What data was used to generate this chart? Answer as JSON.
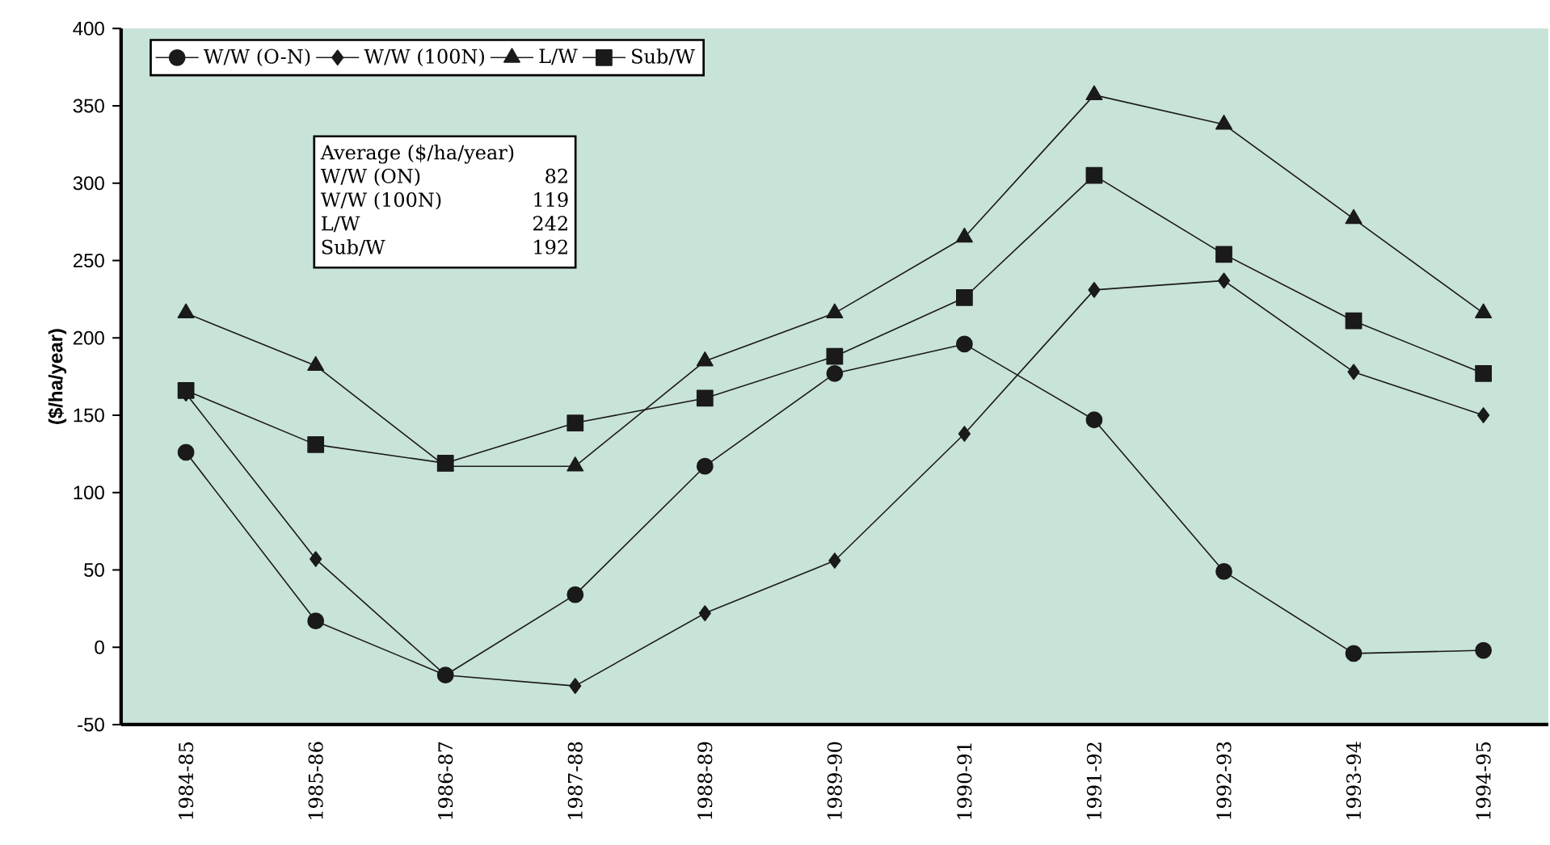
{
  "chart_data": {
    "type": "line",
    "ylabel": "($/ha/year)",
    "categories": [
      "1984-85",
      "1985-86",
      "1986-87",
      "1987-88",
      "1988-89",
      "1989-90",
      "1990-91",
      "1991-92",
      "1992-93",
      "1993-94",
      "1994-95"
    ],
    "series": [
      {
        "name": "W/W (O-N)",
        "color": "#1a1a1a",
        "marker": "circle",
        "values": [
          126,
          17,
          -18,
          34,
          117,
          177,
          196,
          147,
          49,
          -4,
          -2
        ]
      },
      {
        "name": "W/W (100N)",
        "color": "#1a1a1a",
        "marker": "diamond",
        "values": [
          164,
          57,
          -18,
          -25,
          22,
          56,
          138,
          231,
          237,
          178,
          150
        ]
      },
      {
        "name": "L/W",
        "color": "#1a1a1a",
        "marker": "triangle",
        "values": [
          216,
          182,
          117,
          117,
          185,
          216,
          265,
          357,
          338,
          277,
          216
        ]
      },
      {
        "name": "Sub/W",
        "color": "#1a1a1a",
        "marker": "square",
        "values": [
          166,
          131,
          119,
          145,
          161,
          188,
          226,
          305,
          254,
          211,
          177
        ]
      }
    ],
    "ylim": [
      -50,
      400
    ],
    "yticks": [
      -50,
      0,
      50,
      100,
      150,
      200,
      250,
      300,
      350,
      400
    ],
    "grid": false,
    "legend": "top left",
    "line_style": "solid",
    "annotations": [
      "Average ($/ha/year)",
      "W/W (ON)",
      "82",
      "W/W (100N)",
      "119",
      "L/W",
      "242",
      "Sub/W",
      "192"
    ]
  }
}
